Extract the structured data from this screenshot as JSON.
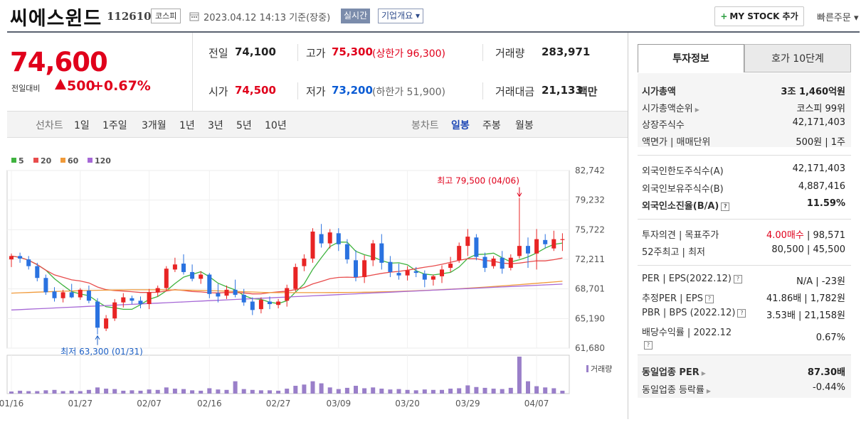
{
  "header": {
    "stock_name": "씨에스윈드",
    "stock_code": "112610",
    "market": "코스피",
    "date_text": "2023.04.12 14:13 기준(장중)",
    "realtime_label": "실시간",
    "overview_label": "기업개요 ▾",
    "mystock_label": "MY STOCK 추가",
    "mystock_plus": "+",
    "quick_order_label": "빠른주문 ▾"
  },
  "summary": {
    "price": "74,600",
    "vs_label": "전일대비",
    "diff": "500",
    "diff_pct": "+0.67%",
    "prev_label": "전일",
    "prev": "74,100",
    "high_label": "고가",
    "high": "75,300",
    "upper_limit": "(상한가 96,300)",
    "volume_label": "거래량",
    "volume": "283,971",
    "open_label": "시가",
    "open": "74,500",
    "low_label": "저가",
    "low": "73,200",
    "lower_limit": "(하한가 51,900)",
    "amount_label": "거래대금",
    "amount": "21,133",
    "amount_unit": "백만"
  },
  "period_bar": {
    "line_chart": "선차트",
    "periods": [
      "1일",
      "1주일",
      "3개월",
      "1년",
      "3년",
      "5년",
      "10년"
    ],
    "candle_chart": "봉차트",
    "candles": [
      "일봉",
      "주봉",
      "월봉"
    ],
    "active_candle": "일봉"
  },
  "chart_data": {
    "type": "candlestick",
    "legend": [
      {
        "name": "5",
        "color": "#3fb33f"
      },
      {
        "name": "20",
        "color": "#e84c4c"
      },
      {
        "name": "60",
        "color": "#f09a3a"
      },
      {
        "name": "120",
        "color": "#a668d6"
      }
    ],
    "y_ticks": [
      "82,742",
      "79,232",
      "75,722",
      "72,211",
      "68,701",
      "65,190",
      "61,680"
    ],
    "ylim": [
      61680,
      82742
    ],
    "x_ticks": [
      "01/16",
      "01/27",
      "02/07",
      "02/16",
      "02/27",
      "03/09",
      "03/20",
      "03/29",
      "04/07"
    ],
    "x_tick_index": [
      0,
      8,
      16,
      23,
      31,
      38,
      46,
      53,
      61
    ],
    "annotation_high": "최고 79,500 (04/06)",
    "annotation_low": "최저 63,300 (01/31)",
    "high_index": 59,
    "low_index": 10,
    "volume_label": "거래량",
    "candles": [
      [
        72200,
        72900,
        71300,
        72600
      ],
      [
        72600,
        73000,
        71800,
        72300
      ],
      [
        72200,
        72600,
        71000,
        71400
      ],
      [
        71400,
        71800,
        69600,
        70000
      ],
      [
        70000,
        70400,
        68000,
        68300
      ],
      [
        68400,
        68900,
        67200,
        67600
      ],
      [
        67600,
        68600,
        67100,
        68300
      ],
      [
        68300,
        69300,
        67600,
        67700
      ],
      [
        67700,
        68800,
        67400,
        68600
      ],
      [
        68500,
        69100,
        67000,
        67300
      ],
      [
        67200,
        67600,
        63300,
        64100
      ],
      [
        64000,
        65600,
        63700,
        65200
      ],
      [
        65200,
        67500,
        64900,
        67100
      ],
      [
        67100,
        68200,
        66500,
        67700
      ],
      [
        67600,
        67900,
        66900,
        67300
      ],
      [
        67300,
        67800,
        66400,
        66900
      ],
      [
        66900,
        68700,
        66300,
        68300
      ],
      [
        68300,
        69100,
        67800,
        68800
      ],
      [
        68800,
        71400,
        68500,
        71100
      ],
      [
        71000,
        72400,
        70700,
        71600
      ],
      [
        71700,
        72800,
        70400,
        70700
      ],
      [
        70700,
        71600,
        69600,
        69900
      ],
      [
        69900,
        70800,
        69300,
        70400
      ],
      [
        70400,
        70600,
        67600,
        68100
      ],
      [
        68200,
        69300,
        67100,
        67800
      ],
      [
        67900,
        69100,
        67500,
        68600
      ],
      [
        68600,
        69800,
        67700,
        68000
      ],
      [
        68000,
        68700,
        66700,
        67100
      ],
      [
        67200,
        67700,
        65600,
        66200
      ],
      [
        66300,
        67700,
        65800,
        67400
      ],
      [
        67200,
        67800,
        66300,
        66900
      ],
      [
        66800,
        67500,
        66400,
        67200
      ],
      [
        67300,
        69200,
        66600,
        68800
      ],
      [
        68700,
        71700,
        68400,
        71300
      ],
      [
        71400,
        72800,
        70800,
        72300
      ],
      [
        72300,
        75900,
        71800,
        75500
      ],
      [
        75200,
        76400,
        73600,
        74100
      ],
      [
        74100,
        75800,
        73500,
        75400
      ],
      [
        75300,
        75900,
        73200,
        74000
      ],
      [
        74000,
        74600,
        71700,
        72200
      ],
      [
        72100,
        73300,
        69600,
        70100
      ],
      [
        70100,
        72700,
        69400,
        72100
      ],
      [
        72100,
        74500,
        71400,
        74100
      ],
      [
        74100,
        75200,
        71000,
        71800
      ],
      [
        71900,
        72600,
        70100,
        70700
      ],
      [
        70600,
        71700,
        69800,
        70300
      ],
      [
        70300,
        71400,
        69700,
        70900
      ],
      [
        70800,
        71300,
        70100,
        70600
      ],
      [
        70500,
        70900,
        68900,
        69800
      ],
      [
        69800,
        70400,
        69100,
        70200
      ],
      [
        70200,
        71500,
        69400,
        71000
      ],
      [
        71200,
        72500,
        70700,
        71700
      ],
      [
        72100,
        74200,
        71800,
        73800
      ],
      [
        73800,
        75800,
        72600,
        74900
      ],
      [
        74800,
        75200,
        72100,
        72500
      ],
      [
        72500,
        73000,
        70700,
        71200
      ],
      [
        71400,
        72600,
        71100,
        72300
      ],
      [
        72400,
        73200,
        70500,
        71100
      ],
      [
        71200,
        72800,
        70900,
        72400
      ],
      [
        72600,
        79500,
        72300,
        73800
      ],
      [
        73800,
        74800,
        71200,
        72900
      ],
      [
        72900,
        75800,
        71000,
        74600
      ],
      [
        74500,
        75200,
        73500,
        74000
      ],
      [
        73500,
        75600,
        73200,
        74600
      ],
      [
        74500,
        75300,
        73200,
        74600
      ]
    ],
    "volume": [
      5,
      7,
      6,
      6,
      8,
      9,
      6,
      7,
      6,
      9,
      15,
      12,
      11,
      7,
      8,
      7,
      10,
      9,
      15,
      12,
      11,
      8,
      7,
      13,
      10,
      9,
      30,
      11,
      9,
      8,
      8,
      7,
      12,
      19,
      22,
      30,
      25,
      15,
      11,
      14,
      19,
      13,
      15,
      12,
      10,
      11,
      9,
      8,
      10,
      9,
      9,
      12,
      13,
      20,
      16,
      14,
      12,
      11,
      14,
      90,
      30,
      18,
      15,
      13,
      7
    ]
  },
  "right_panel": {
    "tab_invest": "투자정보",
    "tab_hoga": "호가 10단계",
    "market_cap_label": "시가총액",
    "market_cap": "3조 1,460억원",
    "rank_label": "시가총액순위",
    "rank": "코스피 99위",
    "shares_label": "상장주식수",
    "shares": "42,171,403",
    "par_label": "액면가 | 매매단위",
    "par": "500원 | 1주",
    "foreign_limit_label": "외국인한도주식수(A)",
    "foreign_limit": "42,171,403",
    "foreign_hold_label": "외국인보유주식수(B)",
    "foreign_hold": "4,887,416",
    "foreign_ratio_label": "외국인소진율(B/A)",
    "foreign_ratio": "11.59%",
    "opinion_label": "투자의견 | 목표주가",
    "opinion": "4.00매수",
    "target": "| 98,571",
    "week52_label": "52주최고 | 최저",
    "week52": "80,500 | 45,500",
    "per_label": "PER | EPS(2022.12)",
    "per": "N/A | -23원",
    "est_per_label": "추정PER | EPS",
    "est_per": "41.86배 | 1,782원",
    "pbr_label": "PBR | BPS (2022.12)",
    "pbr": "3.53배 | 21,158원",
    "div_label": "배당수익률 | 2022.12",
    "div": "0.67%",
    "sector_per_label": "동일업종 PER",
    "sector_per": "87.30배",
    "sector_rate_label": "동일업종 등락률",
    "sector_rate": "-0.44%",
    "help_mark": "?"
  }
}
